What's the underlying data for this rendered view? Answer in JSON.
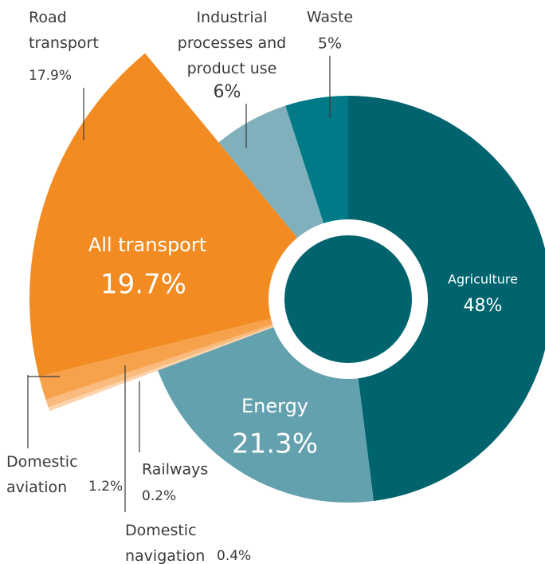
{
  "chart_data": {
    "type": "pie",
    "categories": [
      "Agriculture",
      "Energy",
      "Railways",
      "Domestic\nnavigation",
      "Domestic\naviation",
      "Road\ntransport",
      "Industrial\nprocesses and\nproduct use",
      "Waste"
    ],
    "values": [
      48,
      21.3,
      0.2,
      0.4,
      1.2,
      17.9,
      6,
      5
    ],
    "value_labels": [
      "48%",
      "21.3%",
      "0.2%",
      "0.4%",
      "1.2%",
      "17.9%",
      "6%",
      "5%"
    ],
    "colors": [
      "#00636e",
      "#64a1ae",
      "#fcd3aa",
      "#f9bb7e",
      "#f6a14c",
      "#f28c22",
      "#7fb0bc",
      "#007a87"
    ],
    "group": {
      "name": "All transport",
      "value": 19.7,
      "value_label": "19.7%",
      "members": [
        2,
        3,
        4,
        5
      ]
    }
  }
}
